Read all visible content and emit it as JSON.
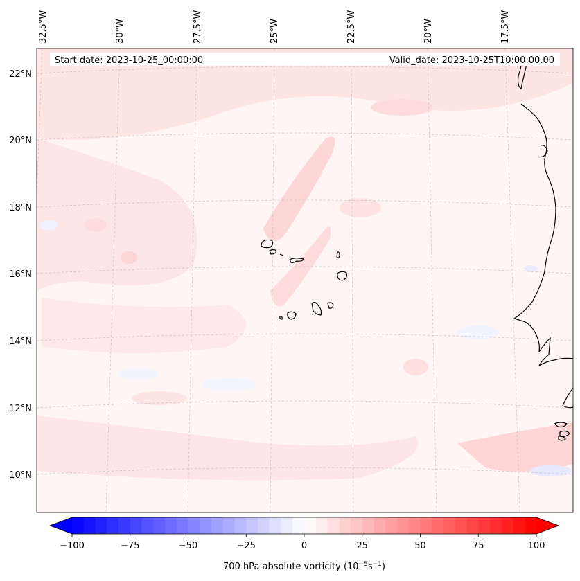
{
  "map": {
    "start_label": "Start date: 2023-10-25_00:00:00",
    "valid_label": "Valid_date: 2023-10-25T10:00:00.00",
    "lon_labels": [
      "32.5°W",
      "30°W",
      "27.5°W",
      "25°W",
      "22.5°W",
      "20°W",
      "17.5°W"
    ],
    "lat_labels": [
      "22°N",
      "20°N",
      "18°N",
      "16°N",
      "14°N",
      "12°N",
      "10°N"
    ],
    "colors": {
      "background": "#fff5f5",
      "land_outline": "#000000",
      "gridline": "#b0b0b0",
      "pink_light": "#ffe6e6",
      "pink": "#ffd9d9",
      "blue_light": "#f1f3ff"
    }
  },
  "colorbar": {
    "label_prefix": "700 hPa absolute vorticity (10",
    "label_exp1": "−5",
    "label_mid": "s",
    "label_exp2": "−1",
    "label_suffix": ")",
    "min": -100,
    "max": 100,
    "ticks": [
      -100,
      -75,
      -50,
      -25,
      0,
      25,
      50,
      75,
      100
    ],
    "tick_labels": [
      "−100",
      "−75",
      "−50",
      "−25",
      "0",
      "25",
      "50",
      "75",
      "100"
    ],
    "levels": 41,
    "low_color": "#0000ff",
    "high_color": "#ff0000"
  }
}
